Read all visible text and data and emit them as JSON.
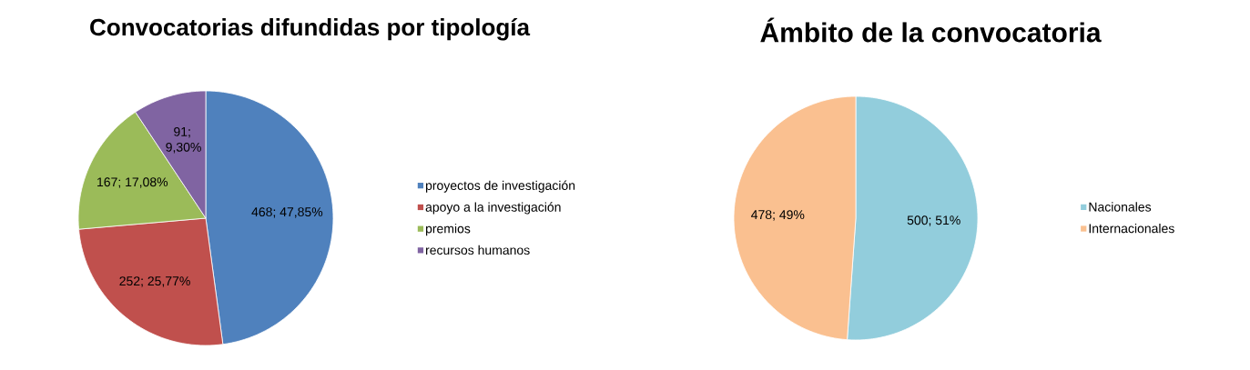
{
  "chart_data": [
    {
      "type": "pie",
      "title": "Convocatorias difundidas por tipología",
      "categories": [
        "proyectos de investigación",
        "apoyo a la investigación",
        "premios",
        "recursos humanos"
      ],
      "values": [
        468,
        252,
        167,
        91
      ],
      "colors": [
        "#4f81bd",
        "#c0504d",
        "#9bbb59",
        "#8064a2"
      ],
      "value_labels": [
        "468; 47,85%",
        "252; 25,77%",
        "167; 17,08%",
        "91; 9,30%"
      ],
      "legend": "right"
    },
    {
      "type": "pie",
      "title": "Ámbito de la convocatoria",
      "categories": [
        "Nacionales",
        "Internacionales"
      ],
      "values": [
        500,
        478
      ],
      "colors": [
        "#92cddc",
        "#fac090"
      ],
      "value_labels": [
        "500; 51%",
        "478; 49%"
      ],
      "legend": "right"
    }
  ]
}
